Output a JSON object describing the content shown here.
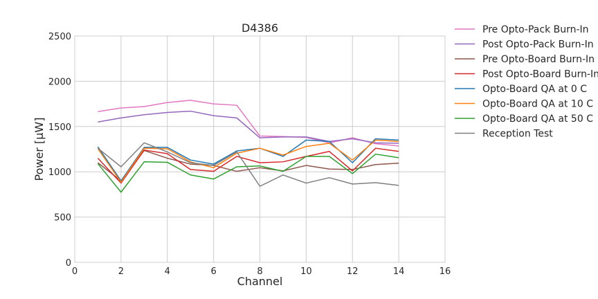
{
  "chart_data": {
    "type": "line",
    "title": "D4386",
    "xlabel": "Channel",
    "ylabel": "Power [μW]",
    "xlim": [
      0,
      16
    ],
    "ylim": [
      0,
      2500
    ],
    "xticks": [
      0,
      2,
      4,
      6,
      8,
      10,
      12,
      14,
      16
    ],
    "yticks": [
      0,
      500,
      1000,
      1500,
      2000,
      2500
    ],
    "grid": true,
    "legend_position": "outside-right",
    "x": [
      1,
      2,
      3,
      4,
      5,
      6,
      7,
      8,
      9,
      10,
      11,
      12,
      13,
      14
    ],
    "series": [
      {
        "name": "Pre Opto-Pack Burn-In",
        "color": "#e377c2",
        "values": [
          1665,
          1705,
          1720,
          1765,
          1790,
          1750,
          1735,
          1395,
          1390,
          1380,
          1320,
          1375,
          1310,
          1285
        ]
      },
      {
        "name": "Post Opto-Pack Burn-In",
        "color": "#9467bd",
        "values": [
          1550,
          1595,
          1630,
          1655,
          1670,
          1620,
          1595,
          1375,
          1385,
          1385,
          1335,
          1365,
          1320,
          1315
        ]
      },
      {
        "name": "Pre Opto-Board Burn-In",
        "color": "#8c564b",
        "values": [
          1100,
          900,
          1235,
          1150,
          1085,
          1070,
          1005,
          1045,
          1010,
          1070,
          1030,
          1025,
          1080,
          1095
        ]
      },
      {
        "name": "Post Opto-Board Burn-In",
        "color": "#d62728",
        "values": [
          1150,
          875,
          1240,
          1200,
          1025,
          1005,
          1170,
          1100,
          1110,
          1170,
          1225,
          1010,
          1260,
          1225
        ]
      },
      {
        "name": "Opto-Board QA at 0 C",
        "color": "#1f77b4",
        "values": [
          1275,
          900,
          1270,
          1270,
          1130,
          1085,
          1230,
          1260,
          1170,
          1350,
          1335,
          1100,
          1365,
          1350
        ]
      },
      {
        "name": "Opto-Board QA at 10 C",
        "color": "#ff7f0e",
        "values": [
          1255,
          885,
          1260,
          1255,
          1110,
          1045,
          1205,
          1260,
          1185,
          1280,
          1315,
          1130,
          1350,
          1335
        ]
      },
      {
        "name": "Opto-Board QA at 50 C",
        "color": "#2ca02c",
        "values": [
          1090,
          775,
          1110,
          1105,
          965,
          920,
          1055,
          1065,
          1005,
          1170,
          1170,
          980,
          1195,
          1155
        ]
      },
      {
        "name": "Reception Test",
        "color": "#7f7f7f",
        "values": [
          1260,
          1055,
          1320,
          1220,
          1100,
          1070,
          1220,
          840,
          965,
          875,
          935,
          865,
          880,
          850
        ]
      }
    ]
  }
}
